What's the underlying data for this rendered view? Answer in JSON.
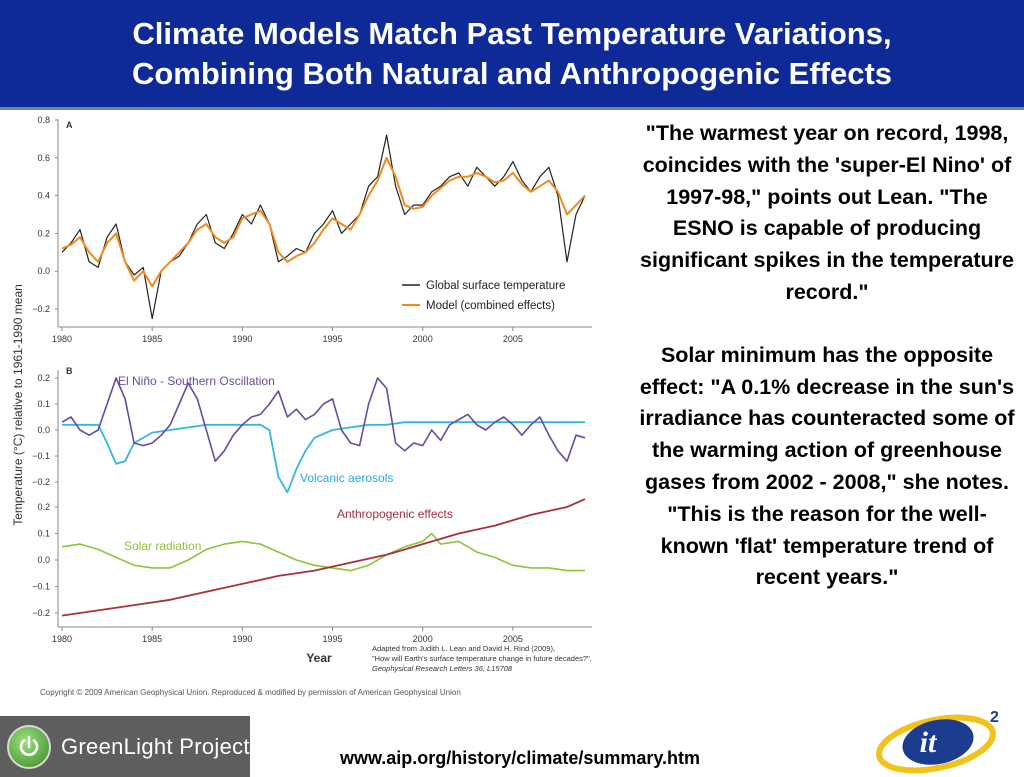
{
  "slide": {
    "title_line1": "Climate Models Match Past Temperature Variations,",
    "title_line2": "Combining Both Natural and Anthropogenic Effects",
    "quote_paragraph1": "\"The warmest year on record, 1998, coincides with the 'super-El Nino' of 1997-98,\" points out Lean. \"The ESNO is capable of producing significant spikes in the temperature record.\"",
    "quote_paragraph2": "Solar minimum has the opposite effect: \"A 0.1% decrease in the sun's irradiance has counteracted some of the warming action of greenhouse gases from 2002 - 2008,\" she notes. \"This is the reason for the well-known 'flat' temperature trend of recent years.\"",
    "url": "www.aip.org/history/climate/summary.htm",
    "logo_left_text": "GreenLight Project",
    "logo_right_text": "it",
    "logo_right_superscript": "2",
    "colors": {
      "header_bg": "#0d2a96",
      "observed": "#222222",
      "model": "#f08a1e",
      "enso": "#6a4a9e",
      "volcanic": "#35b5e5",
      "anthropogenic": "#a8303a",
      "solar": "#8fc23a"
    }
  },
  "chart_data": [
    {
      "type": "line",
      "panel_label": "A",
      "ylabel": "Temperature (°C) relative to 1961-1990 mean",
      "xlim": [
        1980,
        2009
      ],
      "ylim": [
        -0.3,
        0.8
      ],
      "yticks": [
        "0.8",
        "0.6",
        "0.4",
        "0.2",
        "0.0",
        "−0.2"
      ],
      "xticks": [
        "1980",
        "1985",
        "1990",
        "1995",
        "2000",
        "2005"
      ],
      "legend_position": "bottom-right",
      "series": [
        {
          "name": "Global surface temperature",
          "x": [
            1980,
            1980.5,
            1981,
            1981.5,
            1982,
            1982.5,
            1983,
            1983.5,
            1984,
            1984.5,
            1985,
            1985.5,
            1986,
            1986.5,
            1987,
            1987.5,
            1988,
            1988.5,
            1989,
            1989.5,
            1990,
            1990.5,
            1991,
            1991.5,
            1992,
            1992.5,
            1993,
            1993.5,
            1994,
            1994.5,
            1995,
            1995.5,
            1996,
            1996.5,
            1997,
            1997.5,
            1998,
            1998.5,
            1999,
            1999.5,
            2000,
            2000.5,
            2001,
            2001.5,
            2002,
            2002.5,
            2003,
            2003.5,
            2004,
            2004.5,
            2005,
            2005.5,
            2006,
            2006.5,
            2007,
            2007.5,
            2008,
            2008.5,
            2009
          ],
          "values": [
            0.1,
            0.15,
            0.22,
            0.05,
            0.02,
            0.18,
            0.25,
            0.05,
            -0.02,
            0.02,
            -0.25,
            0.0,
            0.05,
            0.08,
            0.15,
            0.25,
            0.3,
            0.15,
            0.12,
            0.2,
            0.3,
            0.25,
            0.35,
            0.25,
            0.05,
            0.08,
            0.12,
            0.1,
            0.2,
            0.25,
            0.32,
            0.2,
            0.25,
            0.3,
            0.45,
            0.5,
            0.72,
            0.45,
            0.3,
            0.35,
            0.35,
            0.42,
            0.45,
            0.5,
            0.52,
            0.45,
            0.55,
            0.5,
            0.45,
            0.5,
            0.58,
            0.48,
            0.42,
            0.5,
            0.55,
            0.4,
            0.05,
            0.3,
            0.4
          ]
        },
        {
          "name": "Model (combined effects)",
          "x": [
            1980,
            1980.5,
            1981,
            1981.5,
            1982,
            1982.5,
            1983,
            1983.5,
            1984,
            1984.5,
            1985,
            1985.5,
            1986,
            1986.5,
            1987,
            1987.5,
            1988,
            1988.5,
            1989,
            1989.5,
            1990,
            1990.5,
            1991,
            1991.5,
            1992,
            1992.5,
            1993,
            1993.5,
            1994,
            1994.5,
            1995,
            1995.5,
            1996,
            1996.5,
            1997,
            1997.5,
            1998,
            1998.5,
            1999,
            1999.5,
            2000,
            2000.5,
            2001,
            2001.5,
            2002,
            2002.5,
            2003,
            2003.5,
            2004,
            2004.5,
            2005,
            2005.5,
            2006,
            2006.5,
            2007,
            2007.5,
            2008,
            2008.5,
            2009
          ],
          "values": [
            0.12,
            0.14,
            0.18,
            0.1,
            0.05,
            0.15,
            0.2,
            0.05,
            -0.05,
            0.0,
            -0.08,
            0.0,
            0.05,
            0.1,
            0.15,
            0.22,
            0.25,
            0.18,
            0.15,
            0.18,
            0.28,
            0.3,
            0.32,
            0.25,
            0.1,
            0.05,
            0.08,
            0.1,
            0.15,
            0.22,
            0.28,
            0.25,
            0.22,
            0.3,
            0.4,
            0.48,
            0.6,
            0.5,
            0.35,
            0.33,
            0.34,
            0.4,
            0.44,
            0.48,
            0.5,
            0.5,
            0.52,
            0.5,
            0.47,
            0.48,
            0.52,
            0.46,
            0.42,
            0.45,
            0.48,
            0.42,
            0.3,
            0.35,
            0.4
          ]
        }
      ]
    },
    {
      "type": "line",
      "panel_label": "B",
      "xlabel": "Year",
      "xlim": [
        1980,
        2009
      ],
      "yticks_top": [
        "0.2",
        "0.1",
        "0.0",
        "−0.1",
        "−0.2"
      ],
      "yticks_bottom": [
        "0.2",
        "0.1",
        "0.0",
        "−0.1",
        "−0.2"
      ],
      "ylim_top": [
        -0.25,
        0.25
      ],
      "ylim_bottom": [
        -0.22,
        0.22
      ],
      "xticks": [
        "1980",
        "1985",
        "1990",
        "1995",
        "2000",
        "2005"
      ],
      "series": [
        {
          "name": "El Niño - Southern Oscillation",
          "x": [
            1980,
            1980.5,
            1981,
            1981.5,
            1982,
            1982.5,
            1983,
            1983.5,
            1984,
            1984.5,
            1985,
            1985.5,
            1986,
            1986.5,
            1987,
            1987.5,
            1988,
            1988.5,
            1989,
            1989.5,
            1990,
            1990.5,
            1991,
            1991.5,
            1992,
            1992.5,
            1993,
            1993.5,
            1994,
            1994.5,
            1995,
            1995.5,
            1996,
            1996.5,
            1997,
            1997.5,
            1998,
            1998.5,
            1999,
            1999.5,
            2000,
            2000.5,
            2001,
            2001.5,
            2002,
            2002.5,
            2003,
            2003.5,
            2004,
            2004.5,
            2005,
            2005.5,
            2006,
            2006.5,
            2007,
            2007.5,
            2008,
            2008.5,
            2009
          ],
          "values": [
            0.03,
            0.05,
            0.0,
            -0.02,
            0.0,
            0.1,
            0.2,
            0.12,
            -0.05,
            -0.06,
            -0.05,
            -0.02,
            0.02,
            0.1,
            0.18,
            0.12,
            0.0,
            -0.12,
            -0.08,
            -0.02,
            0.02,
            0.05,
            0.06,
            0.1,
            0.15,
            0.05,
            0.08,
            0.04,
            0.06,
            0.1,
            0.12,
            0.0,
            -0.05,
            -0.06,
            0.1,
            0.2,
            0.16,
            -0.05,
            -0.08,
            -0.05,
            -0.06,
            0.0,
            -0.04,
            0.02,
            0.04,
            0.06,
            0.02,
            0.0,
            0.03,
            0.05,
            0.02,
            -0.02,
            0.02,
            0.05,
            -0.02,
            -0.08,
            -0.12,
            -0.02,
            -0.03
          ]
        },
        {
          "name": "Volcanic aerosols",
          "x": [
            1980,
            1981,
            1982,
            1982.5,
            1983,
            1983.5,
            1984,
            1985,
            1986,
            1987,
            1988,
            1989,
            1990,
            1991,
            1991.5,
            1992,
            1992.5,
            1993,
            1993.5,
            1994,
            1995,
            1996,
            1997,
            1998,
            1999,
            2000,
            2001,
            2002,
            2003,
            2004,
            2005,
            2006,
            2007,
            2008,
            2009
          ],
          "values": [
            0.02,
            0.02,
            0.02,
            -0.05,
            -0.13,
            -0.12,
            -0.05,
            -0.01,
            0.0,
            0.01,
            0.02,
            0.02,
            0.02,
            0.02,
            0.0,
            -0.18,
            -0.24,
            -0.15,
            -0.08,
            -0.03,
            0.0,
            0.01,
            0.02,
            0.02,
            0.03,
            0.03,
            0.03,
            0.03,
            0.03,
            0.03,
            0.03,
            0.03,
            0.03,
            0.03,
            0.03
          ]
        },
        {
          "name": "Anthropogenic effects",
          "x": [
            1980,
            1982,
            1984,
            1986,
            1988,
            1990,
            1992,
            1994,
            1996,
            1998,
            2000,
            2002,
            2004,
            2006,
            2008,
            2009
          ],
          "values": [
            -0.21,
            -0.19,
            -0.17,
            -0.15,
            -0.12,
            -0.09,
            -0.06,
            -0.04,
            -0.01,
            0.02,
            0.06,
            0.1,
            0.13,
            0.17,
            0.2,
            0.23
          ]
        },
        {
          "name": "Solar radiation",
          "x": [
            1980,
            1981,
            1982,
            1983,
            1984,
            1985,
            1986,
            1987,
            1988,
            1989,
            1990,
            1991,
            1992,
            1993,
            1994,
            1995,
            1996,
            1997,
            1998,
            1999,
            2000,
            2000.5,
            2001,
            2002,
            2003,
            2004,
            2005,
            2006,
            2007,
            2008,
            2009
          ],
          "values": [
            0.05,
            0.06,
            0.04,
            0.01,
            -0.02,
            -0.03,
            -0.03,
            0.0,
            0.04,
            0.06,
            0.07,
            0.06,
            0.03,
            0.0,
            -0.02,
            -0.03,
            -0.04,
            -0.02,
            0.02,
            0.05,
            0.07,
            0.1,
            0.06,
            0.07,
            0.03,
            0.01,
            -0.02,
            -0.03,
            -0.03,
            -0.04,
            -0.04
          ]
        }
      ]
    }
  ],
  "figure": {
    "adapted_line1": "Adapted from Judith L. Lean and David H. Rind (2009),",
    "adapted_line2": "\"How will Earth's surface temperature change in future decades?\",",
    "adapted_line3": "Geophysical Research Letters 36, L15708",
    "copyright": "Copyright © 2009 American Geophysical Union. Reproduced & modified by permission of American Geophysical Union"
  }
}
